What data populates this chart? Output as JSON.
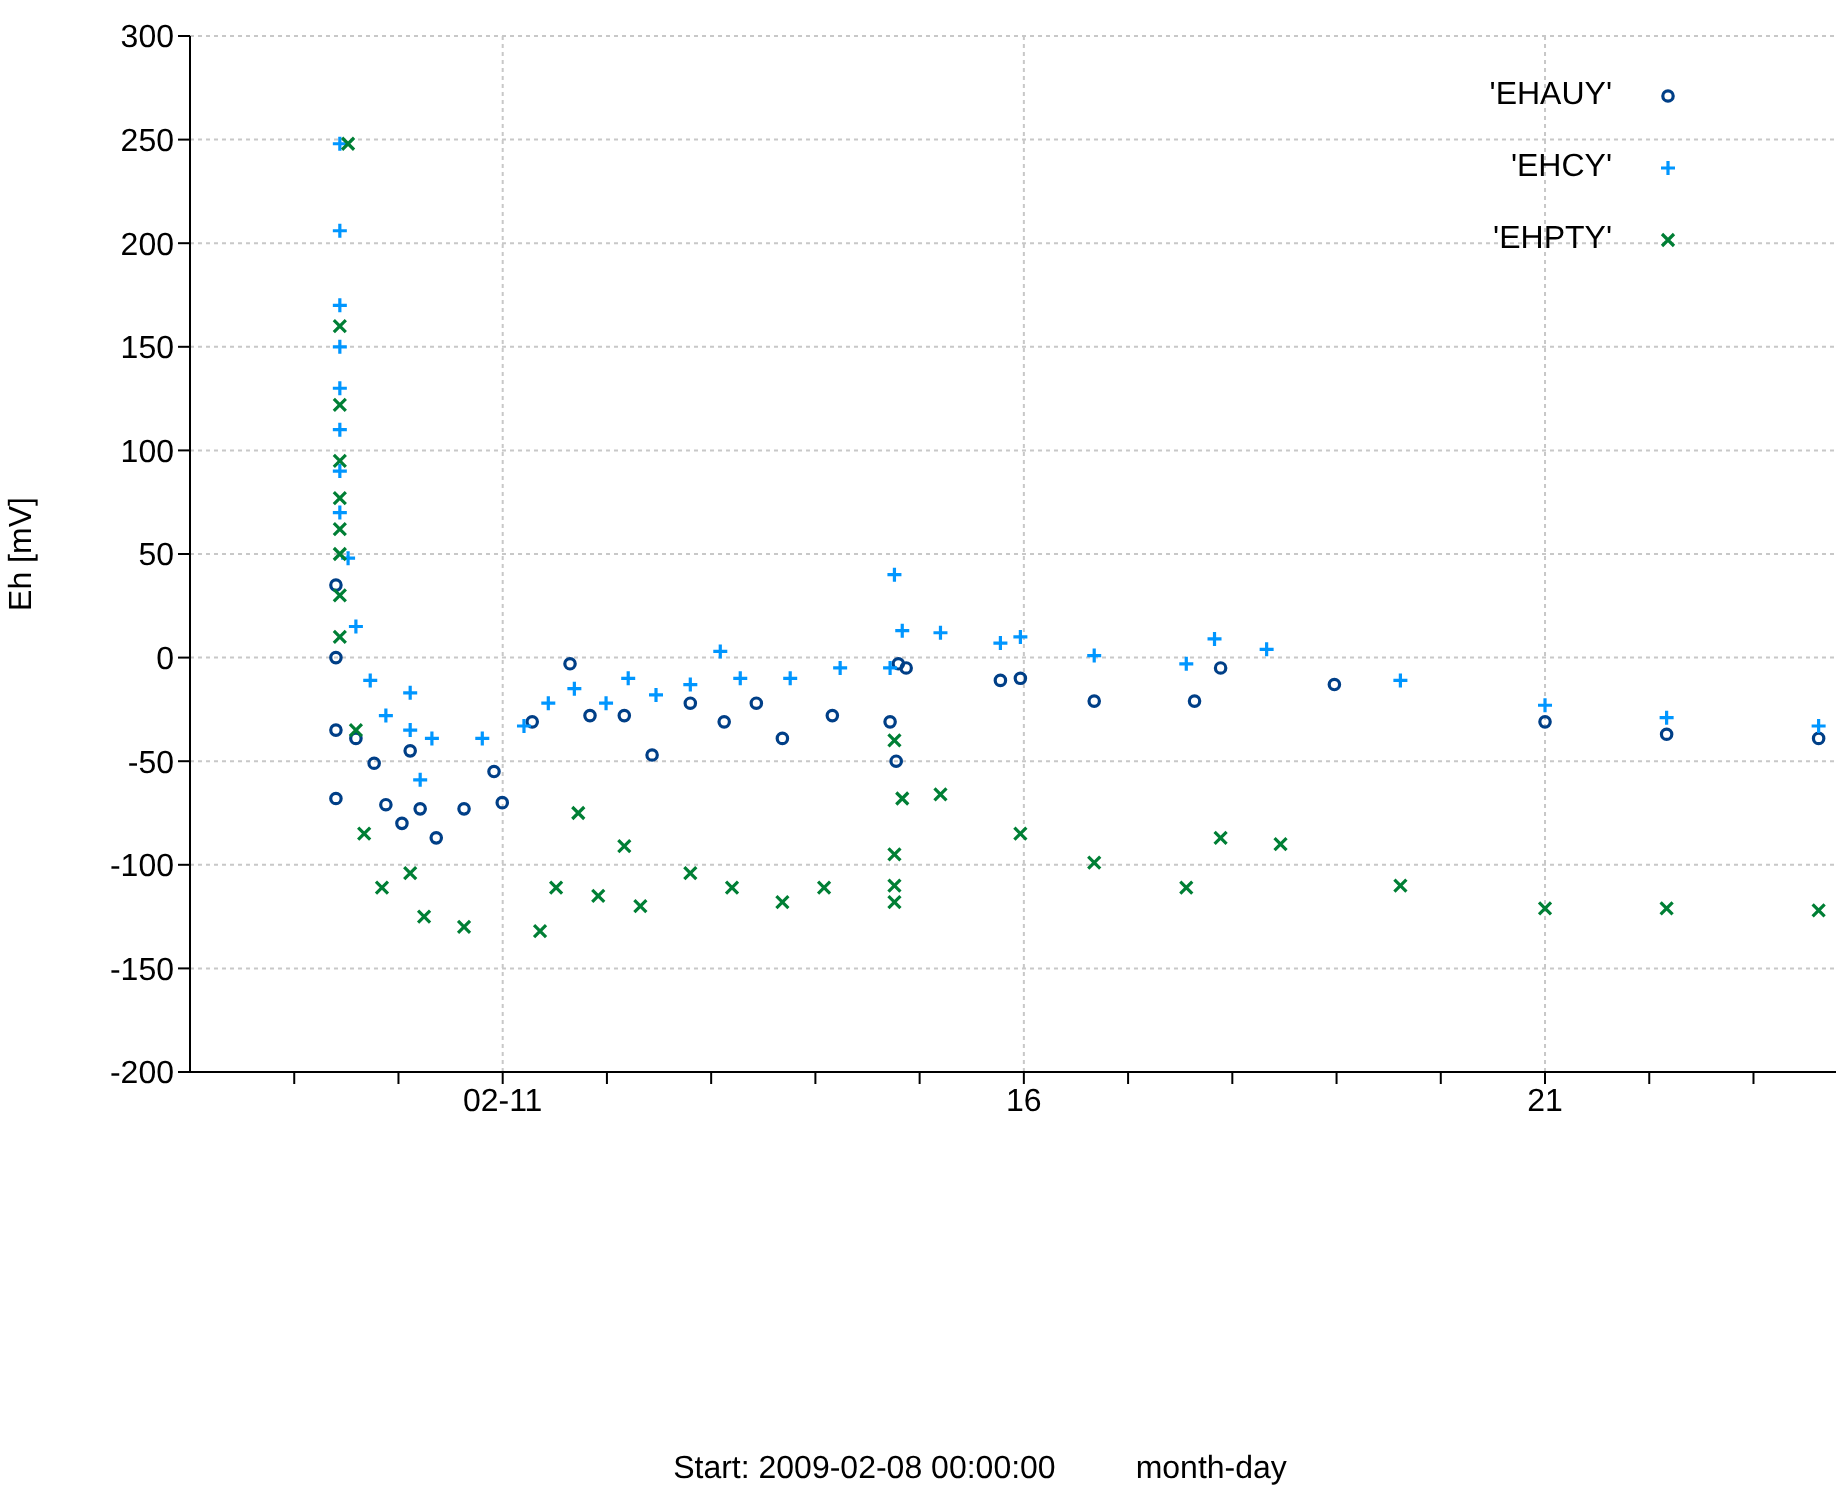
{
  "chart_data": {
    "type": "scatter",
    "ylabel": "Eh [mV]",
    "annotations": [
      "Start: 2009-02-08 00:00:00",
      "month-day"
    ],
    "xlim": [
      "2009-02-08",
      "2009-02-23T19:00"
    ],
    "xticks": [
      {
        "value": "2009-02-09",
        "label": null
      },
      {
        "value": "2009-02-10",
        "label": null
      },
      {
        "value": "2009-02-11",
        "label": "02-11"
      },
      {
        "value": "2009-02-12",
        "label": null
      },
      {
        "value": "2009-02-13",
        "label": null
      },
      {
        "value": "2009-02-14",
        "label": null
      },
      {
        "value": "2009-02-15",
        "label": null
      },
      {
        "value": "2009-02-16",
        "label": "16"
      },
      {
        "value": "2009-02-17",
        "label": null
      },
      {
        "value": "2009-02-18",
        "label": null
      },
      {
        "value": "2009-02-19",
        "label": null
      },
      {
        "value": "2009-02-20",
        "label": null
      },
      {
        "value": "2009-02-21",
        "label": "21"
      },
      {
        "value": "2009-02-22",
        "label": null
      },
      {
        "value": "2009-02-23",
        "label": null
      }
    ],
    "ylim": [
      -200,
      300
    ],
    "yticks": [
      -200,
      -150,
      -100,
      -50,
      0,
      50,
      100,
      150,
      200,
      250,
      300
    ],
    "grid": true,
    "legend": "top right",
    "series": [
      {
        "name": "'EHAUY'",
        "color": "#003f87",
        "marker": "circle",
        "x": [
          "2009-02-09T09:36",
          "2009-02-09T09:36",
          "2009-02-09T09:36",
          "2009-02-09T09:36",
          "2009-02-09T14:12",
          "2009-02-09T18:24",
          "2009-02-09T21:06",
          "2009-02-10T00:48",
          "2009-02-10T02:42",
          "2009-02-10T05:00",
          "2009-02-10T08:42",
          "2009-02-10T15:06",
          "2009-02-10T22:00",
          "2009-02-10T23:54",
          "2009-02-11T06:48",
          "2009-02-11T15:30",
          "2009-02-11T20:06",
          "2009-02-12T04:00",
          "2009-02-12T10:24",
          "2009-02-12T19:12",
          "2009-02-13T03:00",
          "2009-02-13T10:24",
          "2009-02-13T16:24",
          "2009-02-14T03:54",
          "2009-02-14T17:12",
          "2009-02-14T18:36",
          "2009-02-14T19:06",
          "2009-02-14T20:54",
          "2009-02-15T18:36",
          "2009-02-15T23:12",
          "2009-02-16T16:12",
          "2009-02-17T15:18",
          "2009-02-17T21:18",
          "2009-02-18T23:30",
          "2009-02-21T00:00",
          "2009-02-22T04:00",
          "2009-02-23T15:00"
        ],
        "values": [
          35,
          0,
          -35,
          -68,
          -39,
          -51,
          -71,
          -80,
          -45,
          -73,
          -87,
          -73,
          -55,
          -70,
          -31,
          -3,
          -28,
          -28,
          -47,
          -22,
          -31,
          -22,
          -39,
          -28,
          -31,
          -50,
          -3,
          -5,
          -11,
          -10,
          -21,
          -21,
          -5,
          -13,
          -31,
          -37,
          -39
        ]
      },
      {
        "name": "'EHCY'",
        "color": "#0096ff",
        "marker": "plus",
        "x": [
          "2009-02-09T10:30",
          "2009-02-09T10:30",
          "2009-02-09T10:30",
          "2009-02-09T10:30",
          "2009-02-09T10:30",
          "2009-02-09T10:30",
          "2009-02-09T10:30",
          "2009-02-09T10:30",
          "2009-02-09T12:24",
          "2009-02-09T14:12",
          "2009-02-09T17:30",
          "2009-02-09T21:06",
          "2009-02-10T02:42",
          "2009-02-10T02:42",
          "2009-02-10T05:00",
          "2009-02-10T07:42",
          "2009-02-10T19:18",
          "2009-02-11T04:54",
          "2009-02-11T10:30",
          "2009-02-11T16:30",
          "2009-02-11T23:48",
          "2009-02-12T04:54",
          "2009-02-12T11:18",
          "2009-02-12T19:12",
          "2009-02-13T02:06",
          "2009-02-13T06:42",
          "2009-02-13T18:12",
          "2009-02-14T05:42",
          "2009-02-14T17:12",
          "2009-02-14T18:12",
          "2009-02-14T20:00",
          "2009-02-15T04:48",
          "2009-02-15T18:36",
          "2009-02-15T23:12",
          "2009-02-16T16:12",
          "2009-02-17T13:24",
          "2009-02-17T19:54",
          "2009-02-18T07:54",
          "2009-02-19T14:42",
          "2009-02-21T00:00",
          "2009-02-22T04:00",
          "2009-02-23T15:00"
        ],
        "values": [
          248,
          206,
          170,
          150,
          130,
          110,
          90,
          70,
          48,
          15,
          -11,
          -28,
          -35,
          -17,
          -59,
          -39,
          -39,
          -33,
          -22,
          -15,
          -22,
          -10,
          -18,
          -13,
          3,
          -10,
          -10,
          -5,
          -5,
          40,
          13,
          12,
          7,
          10,
          1,
          -3,
          9,
          4,
          -11,
          -23,
          -29,
          -33
        ]
      },
      {
        "name": "'EHPTY'",
        "color": "#007f35",
        "marker": "cross",
        "x": [
          "2009-02-09T12:24",
          "2009-02-09T10:30",
          "2009-02-09T10:30",
          "2009-02-09T10:30",
          "2009-02-09T10:30",
          "2009-02-09T10:30",
          "2009-02-09T10:30",
          "2009-02-09T10:30",
          "2009-02-09T10:30",
          "2009-02-09T14:12",
          "2009-02-09T16:06",
          "2009-02-09T20:12",
          "2009-02-10T02:42",
          "2009-02-10T05:54",
          "2009-02-10T15:06",
          "2009-02-11T08:36",
          "2009-02-11T12:18",
          "2009-02-11T17:24",
          "2009-02-11T22:00",
          "2009-02-12T04:00",
          "2009-02-12T07:42",
          "2009-02-12T19:12",
          "2009-02-13T04:48",
          "2009-02-13T16:24",
          "2009-02-14T02:00",
          "2009-02-14T18:12",
          "2009-02-14T18:12",
          "2009-02-14T18:12",
          "2009-02-14T18:12",
          "2009-02-14T20:00",
          "2009-02-15T04:48",
          "2009-02-15T23:12",
          "2009-02-16T16:12",
          "2009-02-17T13:24",
          "2009-02-17T21:18",
          "2009-02-18T11:06",
          "2009-02-19T14:42",
          "2009-02-21T00:00",
          "2009-02-22T04:00",
          "2009-02-23T15:00"
        ],
        "values": [
          248,
          160,
          122,
          95,
          77,
          62,
          50,
          30,
          10,
          -35,
          -85,
          -111,
          -104,
          -125,
          -130,
          -132,
          -111,
          -75,
          -115,
          -91,
          -120,
          -104,
          -111,
          -118,
          -111,
          -118,
          -110,
          -95,
          -40,
          -68,
          -66,
          -85,
          -99,
          -111,
          -87,
          -90,
          -110,
          -121,
          -121,
          -122
        ]
      }
    ]
  }
}
